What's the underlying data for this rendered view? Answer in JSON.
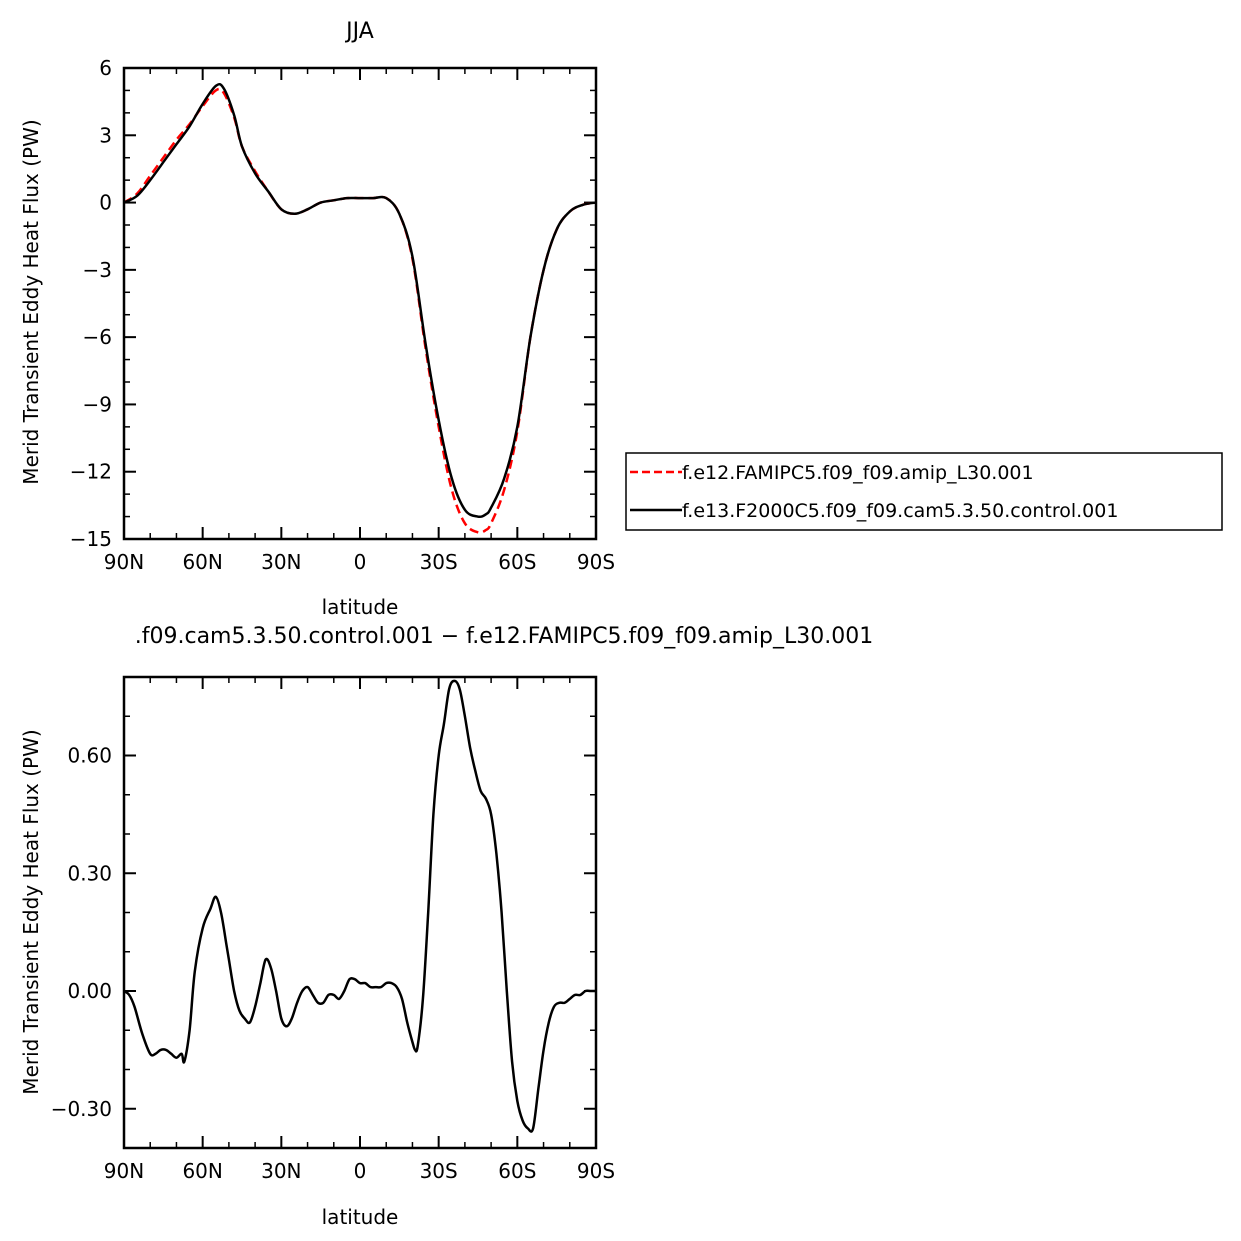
{
  "chart_data": [
    {
      "type": "line",
      "title": "JJA",
      "xlabel": "latitude",
      "ylabel": "Merid Transient Eddy Heat Flux (PW)",
      "xlim": [
        90,
        -90
      ],
      "ylim": [
        -15,
        6
      ],
      "x_ticks": [
        {
          "value": 90,
          "label": "90N"
        },
        {
          "value": 60,
          "label": "60N"
        },
        {
          "value": 30,
          "label": "30N"
        },
        {
          "value": 0,
          "label": "0"
        },
        {
          "value": -30,
          "label": "30S"
        },
        {
          "value": -60,
          "label": "60S"
        },
        {
          "value": -90,
          "label": "90S"
        }
      ],
      "y_ticks": [
        {
          "value": 6,
          "label": "6"
        },
        {
          "value": 3,
          "label": "3"
        },
        {
          "value": 0,
          "label": "0"
        },
        {
          "value": -3,
          "label": "−3"
        },
        {
          "value": -6,
          "label": "−6"
        },
        {
          "value": -9,
          "label": "−9"
        },
        {
          "value": -12,
          "label": "−12"
        },
        {
          "value": -15,
          "label": "−15"
        }
      ],
      "legend_position": "right",
      "series": [
        {
          "name": "f.e12.FAMIPC5.f09_f09.amip_L30.001",
          "color": "#ff0000",
          "dash": "dashed",
          "x": [
            90,
            85,
            80,
            75,
            70,
            65,
            60,
            55,
            52,
            48,
            45,
            40,
            35,
            30,
            25,
            20,
            15,
            10,
            5,
            0,
            -5,
            -10,
            -15,
            -20,
            -25,
            -30,
            -35,
            -40,
            -45,
            -48,
            -50,
            -55,
            -60,
            -65,
            -70,
            -75,
            -80,
            -85,
            -90
          ],
          "y": [
            0,
            0.4,
            1.2,
            2.0,
            2.8,
            3.5,
            4.3,
            5.0,
            4.9,
            3.8,
            2.5,
            1.4,
            0.5,
            -0.3,
            -0.5,
            -0.3,
            0.0,
            0.1,
            0.2,
            0.2,
            0.2,
            0.2,
            -0.5,
            -2.5,
            -6.5,
            -10.0,
            -12.8,
            -14.3,
            -14.7,
            -14.6,
            -14.3,
            -12.8,
            -10.2,
            -6.0,
            -3.0,
            -1.2,
            -0.4,
            -0.1,
            0
          ]
        },
        {
          "name": "f.e13.F2000C5.f09_f09.cam5.3.50.control.001",
          "color": "#000000",
          "dash": "solid",
          "x": [
            90,
            85,
            80,
            75,
            70,
            65,
            60,
            55,
            52,
            48,
            45,
            40,
            35,
            30,
            25,
            20,
            15,
            10,
            5,
            0,
            -5,
            -10,
            -15,
            -20,
            -25,
            -30,
            -35,
            -40,
            -45,
            -48,
            -50,
            -55,
            -60,
            -65,
            -70,
            -75,
            -80,
            -85,
            -90
          ],
          "y": [
            0,
            0.3,
            1.0,
            1.8,
            2.6,
            3.4,
            4.4,
            5.2,
            5.1,
            3.9,
            2.5,
            1.3,
            0.5,
            -0.3,
            -0.5,
            -0.3,
            0.0,
            0.1,
            0.2,
            0.2,
            0.2,
            0.2,
            -0.5,
            -2.4,
            -6.3,
            -9.7,
            -12.3,
            -13.7,
            -14.0,
            -13.9,
            -13.6,
            -12.3,
            -10.0,
            -6.0,
            -3.0,
            -1.2,
            -0.4,
            -0.1,
            0
          ]
        }
      ]
    },
    {
      "type": "line",
      "title": ".f09.cam5.3.50.control.001 − f.e12.FAMIPC5.f09_f09.amip_L30.001",
      "xlabel": "latitude",
      "ylabel": "Merid Transient Eddy Heat Flux (PW)",
      "xlim": [
        90,
        -90
      ],
      "ylim": [
        -0.4,
        0.8
      ],
      "x_ticks": [
        {
          "value": 90,
          "label": "90N"
        },
        {
          "value": 60,
          "label": "60N"
        },
        {
          "value": 30,
          "label": "30N"
        },
        {
          "value": 0,
          "label": "0"
        },
        {
          "value": -30,
          "label": "30S"
        },
        {
          "value": -60,
          "label": "60S"
        },
        {
          "value": -90,
          "label": "90S"
        }
      ],
      "y_ticks": [
        {
          "value": 0.6,
          "label": "0.60"
        },
        {
          "value": 0.3,
          "label": "0.30"
        },
        {
          "value": 0,
          "label": "0.00"
        },
        {
          "value": -0.3,
          "label": "−0.30"
        }
      ],
      "series": [
        {
          "color": "#000000",
          "dash": "solid",
          "x": [
            90,
            88,
            86,
            83,
            80,
            78,
            76,
            74,
            72,
            70,
            68,
            67,
            65,
            63,
            60,
            57,
            55,
            53,
            51,
            50,
            48,
            46,
            44,
            42,
            40,
            38,
            36,
            34,
            32,
            30,
            28,
            26,
            24,
            22,
            20,
            18,
            16,
            14,
            12,
            10,
            8,
            6,
            4,
            2,
            0,
            -2,
            -4,
            -6,
            -8,
            -10,
            -12,
            -14,
            -16,
            -18,
            -20,
            -21,
            -22,
            -24,
            -26,
            -28,
            -30,
            -32,
            -34,
            -36,
            -38,
            -40,
            -42,
            -44,
            -46,
            -48,
            -50,
            -52,
            -54,
            -56,
            -58,
            -60,
            -62,
            -64,
            -66,
            -68,
            -70,
            -72,
            -74,
            -76,
            -78,
            -80,
            -82,
            -84,
            -86,
            -88,
            -90
          ],
          "y": [
            0,
            -0.01,
            -0.04,
            -0.11,
            -0.16,
            -0.16,
            -0.15,
            -0.15,
            -0.16,
            -0.17,
            -0.16,
            -0.18,
            -0.1,
            0.05,
            0.16,
            0.21,
            0.24,
            0.2,
            0.12,
            0.08,
            0.0,
            -0.05,
            -0.07,
            -0.08,
            -0.04,
            0.02,
            0.08,
            0.06,
            0.0,
            -0.07,
            -0.09,
            -0.07,
            -0.03,
            0.0,
            0.01,
            -0.01,
            -0.03,
            -0.03,
            -0.01,
            -0.01,
            -0.02,
            0.0,
            0.03,
            0.03,
            0.02,
            0.02,
            0.01,
            0.01,
            0.01,
            0.02,
            0.02,
            0.01,
            -0.02,
            -0.08,
            -0.13,
            -0.15,
            -0.14,
            -0.02,
            0.2,
            0.45,
            0.6,
            0.68,
            0.77,
            0.79,
            0.77,
            0.7,
            0.62,
            0.56,
            0.51,
            0.49,
            0.45,
            0.35,
            0.2,
            0.0,
            -0.18,
            -0.28,
            -0.33,
            -0.35,
            -0.35,
            -0.25,
            -0.15,
            -0.08,
            -0.04,
            -0.03,
            -0.03,
            -0.02,
            -0.01,
            -0.01,
            0,
            0,
            0
          ]
        }
      ]
    }
  ]
}
